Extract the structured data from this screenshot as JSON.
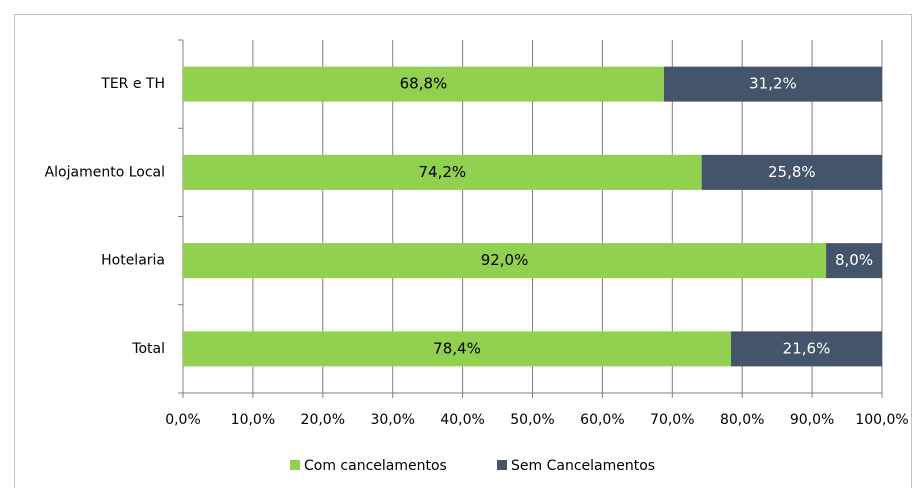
{
  "chart_data": {
    "type": "stacked_barh",
    "categories": [
      "TER e TH",
      "Alojamento Local",
      "Hotelaria",
      "Total"
    ],
    "series": [
      {
        "name": "Com cancelamentos",
        "color": "#92d050",
        "values": [
          68.8,
          74.2,
          92.0,
          78.4
        ],
        "value_labels": [
          "68,8%",
          "74,2%",
          "92,0%",
          "78,4%"
        ]
      },
      {
        "name": "Sem Cancelamentos",
        "color": "#44546a",
        "values": [
          31.2,
          25.8,
          8.0,
          21.6
        ],
        "value_labels": [
          "31,2%",
          "25,8%",
          "8,0%",
          "21,6%"
        ]
      }
    ],
    "xlim": [
      0,
      100
    ],
    "xticks": [
      {
        "value": 0,
        "label": "0,0%"
      },
      {
        "value": 10,
        "label": "10,0%"
      },
      {
        "value": 20,
        "label": "20,0%"
      },
      {
        "value": 30,
        "label": "30,0%"
      },
      {
        "value": 40,
        "label": "40,0%"
      },
      {
        "value": 50,
        "label": "50,0%"
      },
      {
        "value": 60,
        "label": "60,0%"
      },
      {
        "value": 70,
        "label": "70,0%"
      },
      {
        "value": 80,
        "label": "80,0%"
      },
      {
        "value": 90,
        "label": "90,0%"
      },
      {
        "value": 100,
        "label": "100,0%"
      }
    ],
    "grid": true,
    "legend": "bottom"
  }
}
